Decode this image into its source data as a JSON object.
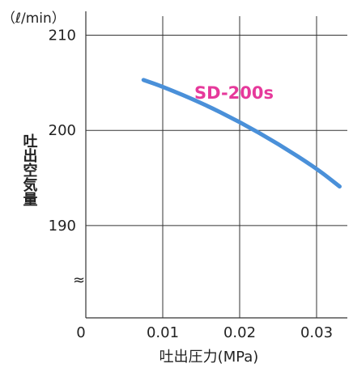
{
  "chart_data": {
    "type": "line",
    "unit_label": "（ℓ/min）",
    "xlabel": "吐出圧力(MPa)",
    "ylabel": "吐出空気量",
    "x_ticks": [
      "0",
      "0.01",
      "0.02",
      "0.03"
    ],
    "y_ticks": [
      "210",
      "200",
      "190"
    ],
    "xlim": [
      0,
      0.034
    ],
    "ylim": [
      180.3,
      212
    ],
    "axis_break": "≈",
    "grid": true,
    "series": [
      {
        "name": "SD-200s",
        "color": "#4a90d9",
        "x": [
          0.0075,
          0.01,
          0.015,
          0.02,
          0.025,
          0.03,
          0.033
        ],
        "y": [
          205.3,
          204.6,
          202.9,
          200.9,
          198.6,
          196.0,
          194.1
        ]
      }
    ],
    "label_color": "#e6399b"
  }
}
